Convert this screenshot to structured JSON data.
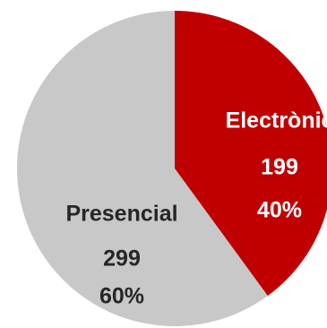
{
  "chart_data": {
    "type": "pie",
    "title": "",
    "start_angle_deg": 0,
    "direction": "clockwise",
    "slices": [
      {
        "label": "Electrònic",
        "value": 199,
        "percent_label": "40%",
        "color": "#c00000",
        "label_color": "#ffffff"
      },
      {
        "label": "Presencial",
        "value": 299,
        "percent_label": "60%",
        "color": "#c8c8c8",
        "label_color": "#262626"
      }
    ]
  }
}
